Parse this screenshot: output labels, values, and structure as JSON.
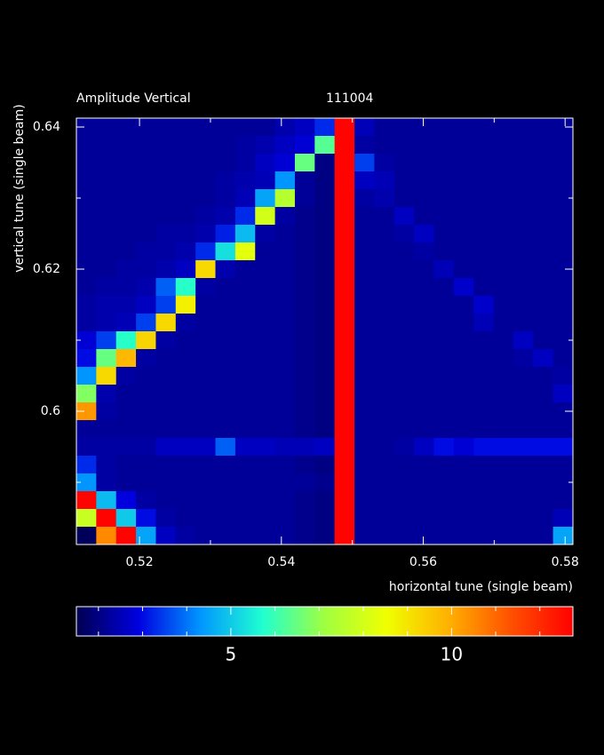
{
  "chart_data": {
    "type": "heatmap",
    "title": "Amplitude Vertical",
    "subtitle": "111004",
    "xlabel": "horizontal tune (single beam)",
    "ylabel": "vertical tune (single beam)",
    "xlim": [
      0.5111,
      0.5811
    ],
    "ylim": [
      0.58125,
      0.64125
    ],
    "xticks": [
      0.52,
      0.54,
      0.56,
      0.58
    ],
    "xticks_minor": [
      0.53,
      0.55,
      0.57
    ],
    "yticks": [
      0.6,
      0.62,
      0.64
    ],
    "yticks_minor": [
      0.59,
      0.61,
      0.63
    ],
    "clim": [
      1.5,
      12.75
    ],
    "cticks": [
      5,
      10
    ],
    "cticks_minor": [
      2,
      3,
      4,
      6,
      7,
      8,
      9,
      11,
      12
    ],
    "colormap": [
      "#000050",
      "#0000e0",
      "#0096ff",
      "#20ffd0",
      "#a0ff40",
      "#f0ff00",
      "#ffb000",
      "#ff5000",
      "#ff0000"
    ],
    "x": [
      0.5125,
      0.5153,
      0.5181,
      0.5209,
      0.5237,
      0.5265,
      0.5293,
      0.5321,
      0.5349,
      0.5377,
      0.5405,
      0.5433,
      0.5461,
      0.5489,
      0.5517,
      0.5545,
      0.5573,
      0.5601,
      0.5629,
      0.5657,
      0.5685,
      0.5713,
      0.5741,
      0.5769,
      0.5797
    ],
    "y": [
      0.64,
      0.6375,
      0.635,
      0.6325,
      0.63,
      0.6275,
      0.625,
      0.6225,
      0.62,
      0.6175,
      0.615,
      0.6125,
      0.61,
      0.6075,
      0.605,
      0.6025,
      0.6,
      0.5975,
      0.595,
      0.5925,
      0.59,
      0.5875,
      0.585,
      0.5825
    ],
    "z": [
      [
        2.2,
        2.2,
        2.2,
        2.2,
        2.2,
        2.2,
        2.2,
        2.2,
        2.2,
        2.2,
        2.4,
        2.6,
        3.3,
        12.7,
        2.5,
        2.2,
        2.2,
        2.2,
        2.2,
        2.2,
        2.2,
        2.2,
        2.2,
        2.2,
        2.2
      ],
      [
        2.2,
        2.2,
        2.2,
        2.2,
        2.2,
        2.2,
        2.2,
        2.2,
        2.3,
        2.4,
        2.6,
        2.8,
        6.3,
        12.7,
        2.3,
        2.2,
        2.2,
        2.2,
        2.2,
        2.2,
        2.2,
        2.2,
        2.2,
        2.2,
        2.2
      ],
      [
        2.2,
        2.2,
        2.2,
        2.2,
        2.2,
        2.2,
        2.2,
        2.2,
        2.3,
        2.6,
        2.8,
        6.5,
        2.0,
        12.7,
        3.5,
        2.3,
        2.2,
        2.2,
        2.2,
        2.2,
        2.2,
        2.2,
        2.2,
        2.2,
        2.2
      ],
      [
        2.2,
        2.2,
        2.2,
        2.2,
        2.2,
        2.2,
        2.2,
        2.3,
        2.4,
        2.5,
        4.3,
        2.2,
        2.0,
        12.7,
        2.6,
        2.5,
        2.2,
        2.2,
        2.2,
        2.2,
        2.2,
        2.2,
        2.2,
        2.2,
        2.2
      ],
      [
        2.2,
        2.2,
        2.2,
        2.2,
        2.2,
        2.2,
        2.2,
        2.3,
        2.5,
        4.5,
        7.5,
        2.2,
        2.0,
        12.7,
        2.3,
        2.4,
        2.2,
        2.2,
        2.2,
        2.2,
        2.2,
        2.2,
        2.2,
        2.2,
        2.2
      ],
      [
        2.2,
        2.2,
        2.2,
        2.2,
        2.2,
        2.2,
        2.3,
        2.4,
        3.3,
        8.0,
        2.3,
        2.1,
        2.0,
        12.7,
        2.2,
        2.2,
        2.6,
        2.2,
        2.2,
        2.2,
        2.2,
        2.2,
        2.2,
        2.2,
        2.2
      ],
      [
        2.2,
        2.2,
        2.2,
        2.2,
        2.3,
        2.3,
        2.4,
        3.2,
        4.8,
        2.3,
        2.2,
        2.1,
        2.0,
        12.7,
        2.2,
        2.2,
        2.3,
        2.6,
        2.2,
        2.2,
        2.2,
        2.2,
        2.2,
        2.2,
        2.2
      ],
      [
        2.2,
        2.2,
        2.2,
        2.3,
        2.3,
        2.4,
        3.3,
        5.3,
        8.3,
        2.2,
        2.2,
        2.1,
        2.0,
        12.7,
        2.2,
        2.2,
        2.2,
        2.3,
        2.2,
        2.2,
        2.2,
        2.2,
        2.2,
        2.2,
        2.2
      ],
      [
        2.2,
        2.2,
        2.3,
        2.3,
        2.4,
        2.6,
        9.2,
        2.4,
        2.2,
        2.2,
        2.2,
        2.1,
        2.0,
        12.7,
        2.2,
        2.2,
        2.2,
        2.2,
        2.5,
        2.2,
        2.2,
        2.2,
        2.2,
        2.2,
        2.2
      ],
      [
        2.2,
        2.3,
        2.3,
        2.4,
        3.8,
        5.8,
        2.3,
        2.2,
        2.2,
        2.2,
        2.2,
        2.1,
        2.0,
        12.7,
        2.2,
        2.2,
        2.2,
        2.2,
        2.2,
        2.7,
        2.2,
        2.2,
        2.2,
        2.2,
        2.2
      ],
      [
        2.3,
        2.4,
        2.4,
        2.6,
        3.5,
        8.8,
        2.2,
        2.2,
        2.2,
        2.2,
        2.2,
        2.1,
        2.0,
        12.7,
        2.2,
        2.2,
        2.2,
        2.2,
        2.2,
        2.2,
        2.7,
        2.2,
        2.2,
        2.2,
        2.2
      ],
      [
        2.3,
        2.4,
        2.5,
        3.5,
        9.2,
        2.3,
        2.2,
        2.2,
        2.2,
        2.2,
        2.2,
        2.1,
        2.0,
        12.7,
        2.2,
        2.2,
        2.2,
        2.2,
        2.2,
        2.2,
        2.5,
        2.2,
        2.2,
        2.2,
        2.2
      ],
      [
        2.8,
        3.5,
        5.8,
        9.3,
        2.3,
        2.2,
        2.2,
        2.2,
        2.2,
        2.2,
        2.2,
        2.1,
        2.0,
        12.7,
        2.2,
        2.2,
        2.2,
        2.2,
        2.2,
        2.2,
        2.2,
        2.2,
        2.6,
        2.2,
        2.2
      ],
      [
        3.0,
        6.5,
        9.8,
        2.3,
        2.2,
        2.2,
        2.2,
        2.2,
        2.2,
        2.2,
        2.2,
        2.1,
        2.0,
        12.7,
        2.2,
        2.2,
        2.2,
        2.2,
        2.2,
        2.2,
        2.2,
        2.2,
        2.3,
        2.6,
        2.2
      ],
      [
        4.3,
        9.2,
        2.3,
        2.2,
        2.2,
        2.2,
        2.2,
        2.2,
        2.2,
        2.2,
        2.2,
        2.1,
        2.0,
        12.7,
        2.2,
        2.2,
        2.2,
        2.2,
        2.2,
        2.2,
        2.2,
        2.2,
        2.2,
        2.2,
        2.3
      ],
      [
        6.8,
        2.4,
        2.2,
        2.2,
        2.2,
        2.2,
        2.2,
        2.2,
        2.2,
        2.2,
        2.2,
        2.1,
        2.0,
        12.7,
        2.2,
        2.2,
        2.2,
        2.2,
        2.2,
        2.2,
        2.2,
        2.2,
        2.2,
        2.2,
        2.6
      ],
      [
        10.3,
        2.3,
        2.2,
        2.2,
        2.2,
        2.2,
        2.2,
        2.2,
        2.2,
        2.2,
        2.2,
        2.1,
        2.0,
        12.7,
        2.2,
        2.2,
        2.2,
        2.2,
        2.2,
        2.2,
        2.2,
        2.2,
        2.2,
        2.2,
        2.2
      ],
      [
        2.2,
        2.2,
        2.2,
        2.2,
        2.2,
        2.2,
        2.2,
        2.2,
        2.2,
        2.2,
        2.2,
        2.1,
        2.0,
        12.7,
        2.2,
        2.2,
        2.2,
        2.2,
        2.2,
        2.2,
        2.2,
        2.2,
        2.2,
        2.2,
        2.2
      ],
      [
        2.3,
        2.3,
        2.3,
        2.3,
        2.6,
        2.6,
        2.6,
        3.8,
        2.6,
        2.6,
        2.5,
        2.5,
        2.6,
        12.7,
        2.2,
        2.2,
        2.3,
        2.6,
        3.0,
        2.8,
        3.0,
        3.0,
        3.0,
        3.0,
        3.0
      ],
      [
        3.3,
        2.3,
        2.2,
        2.2,
        2.2,
        2.2,
        2.2,
        2.2,
        2.2,
        2.2,
        2.2,
        2.1,
        2.0,
        12.7,
        2.2,
        2.2,
        2.2,
        2.2,
        2.2,
        2.2,
        2.2,
        2.2,
        2.2,
        2.2,
        2.2
      ],
      [
        4.3,
        2.3,
        2.2,
        2.2,
        2.2,
        2.2,
        2.2,
        2.2,
        2.2,
        2.2,
        2.2,
        2.2,
        2.1,
        12.7,
        2.2,
        2.2,
        2.2,
        2.2,
        2.2,
        2.2,
        2.2,
        2.2,
        2.2,
        2.2,
        2.2
      ],
      [
        12.7,
        4.8,
        2.9,
        2.3,
        2.2,
        2.2,
        2.2,
        2.2,
        2.2,
        2.2,
        2.2,
        2.1,
        2.0,
        12.7,
        2.2,
        2.2,
        2.2,
        2.2,
        2.2,
        2.2,
        2.2,
        2.2,
        2.2,
        2.2,
        2.2
      ],
      [
        7.8,
        12.7,
        5.0,
        3.0,
        2.3,
        2.2,
        2.2,
        2.2,
        2.2,
        2.2,
        2.2,
        2.1,
        2.0,
        12.7,
        2.2,
        2.2,
        2.2,
        2.2,
        2.2,
        2.2,
        2.2,
        2.2,
        2.2,
        2.2,
        2.5
      ],
      [
        1.6,
        10.5,
        12.7,
        4.5,
        2.6,
        2.3,
        2.2,
        2.2,
        2.2,
        2.2,
        2.2,
        2.1,
        2.0,
        12.7,
        2.2,
        2.2,
        2.2,
        2.2,
        2.2,
        2.2,
        2.2,
        2.2,
        2.2,
        2.2,
        4.5
      ]
    ]
  }
}
